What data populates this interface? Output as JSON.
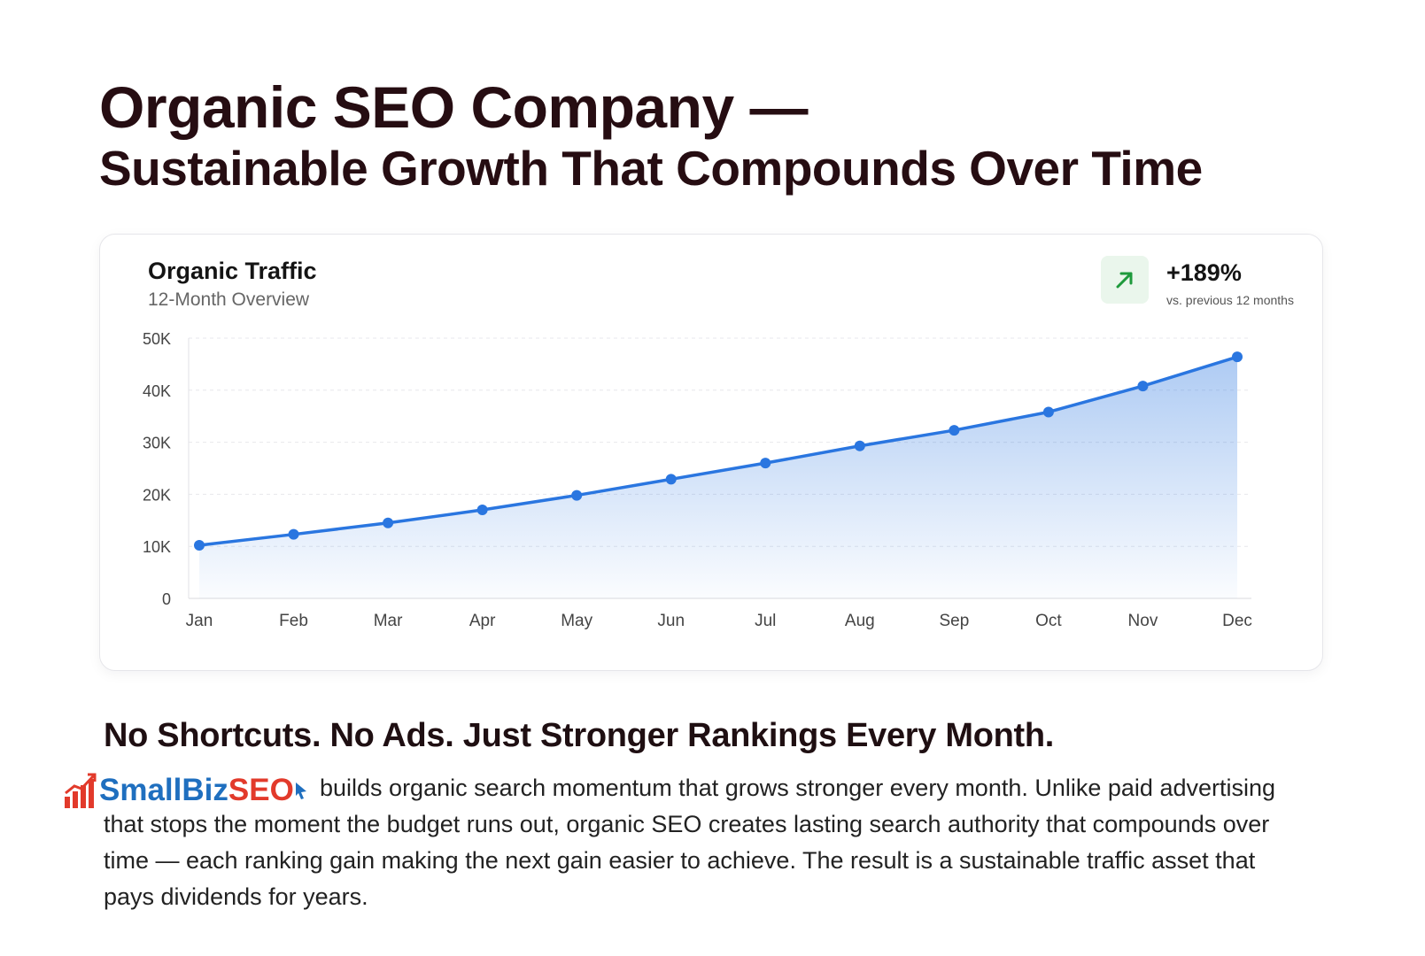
{
  "header": {
    "title_line1": "Organic SEO Company —",
    "title_line2": "Sustainable Growth That Compounds Over Time"
  },
  "card": {
    "growth": {
      "value": "+189%",
      "caption": "vs. previous 12 months",
      "icon": "arrow-up-right-icon",
      "color": "#1e9a3c"
    }
  },
  "chart_data": {
    "type": "area",
    "title": "Organic Traffic",
    "subtitle": "12-Month Overview",
    "categories": [
      "Jan",
      "Feb",
      "Mar",
      "Apr",
      "May",
      "Jun",
      "Jul",
      "Aug",
      "Sep",
      "Oct",
      "Nov",
      "Dec"
    ],
    "values": [
      10200,
      12300,
      14500,
      17000,
      19800,
      22900,
      26000,
      29300,
      32300,
      35800,
      40800,
      46400
    ],
    "ylim": [
      0,
      50000
    ],
    "yticks": [
      0,
      10000,
      20000,
      30000,
      40000,
      50000
    ],
    "ytick_labels": [
      "0",
      "10K",
      "20K",
      "30K",
      "40K",
      "50K"
    ],
    "xlabel": "",
    "ylabel": "",
    "grid": true,
    "line_color": "#2a76e0"
  },
  "tagline": "No Shortcuts. No Ads. Just Stronger Rankings Every Month.",
  "brand": {
    "name_part1": "SmallBiz",
    "name_part2": "SEO",
    "primary_color": "#1f6fbf",
    "accent_color": "#e23a2b"
  },
  "body_text": "builds organic search momentum that grows stronger every month. Unlike paid advertising that stops the moment the budget runs out, organic SEO creates lasting search authority that compounds over time — each ranking gain making the next gain easier to achieve. The result is a sustainable traffic asset that pays dividends for years."
}
